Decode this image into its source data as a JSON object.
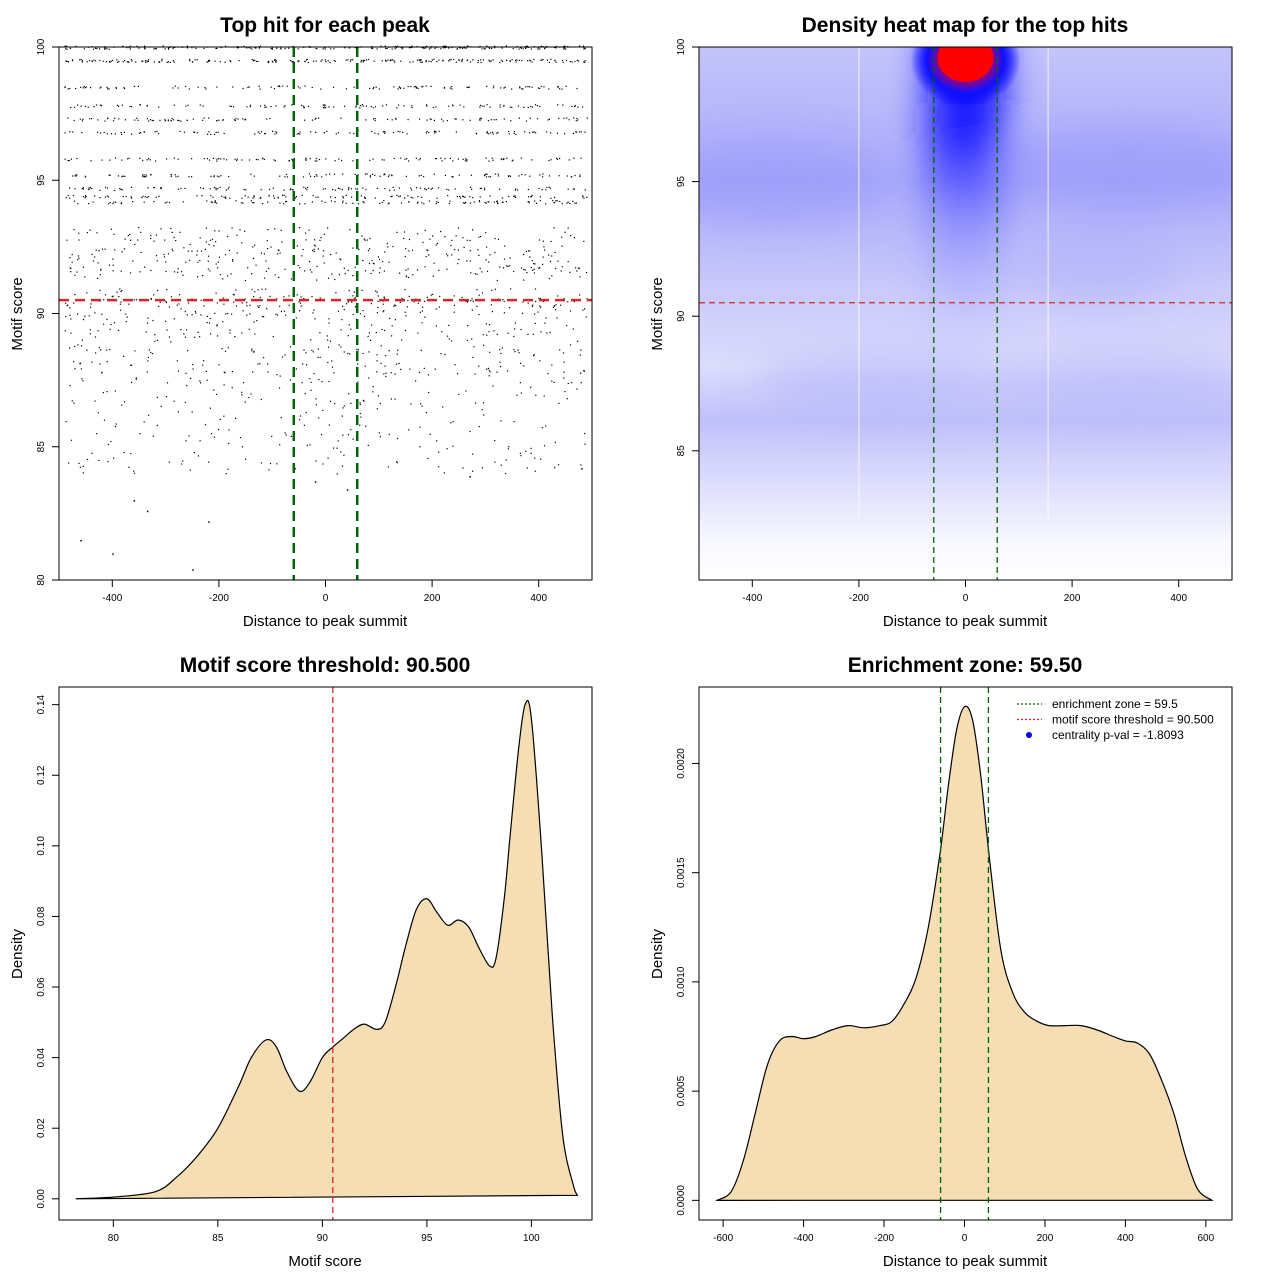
{
  "colors": {
    "threshold_line": "#d62728",
    "zone_line": "#006400",
    "density_fill": "#f5deb3",
    "legend_dot": "#0000ff"
  },
  "chart_data": [
    {
      "type": "scatter",
      "title": "Top hit for each peak",
      "xlabel": "Distance to peak summit",
      "ylabel": "Motif score",
      "xlim": [
        -500,
        500
      ],
      "ylim": [
        80,
        100
      ],
      "xticks": [
        -400,
        -200,
        0,
        200,
        400
      ],
      "yticks": [
        80,
        85,
        90,
        95,
        100
      ],
      "hlines": [
        90.5
      ],
      "vlines": [
        -59.5,
        59.5
      ],
      "score_levels": [
        100,
        99.5,
        98.5,
        97.8,
        97.3,
        96.8,
        95.8,
        95.2,
        94.7,
        94.4,
        94.2,
        93.0,
        92.6,
        92.2,
        91.8,
        91.5,
        90.7,
        90.5,
        90.2,
        89.8,
        89.2,
        88.6,
        88.0,
        87.6,
        87.3,
        86.9,
        86.5,
        86.0,
        85.5,
        85.0,
        84.6,
        84.2
      ],
      "sparse_points": [
        {
          "x": -460,
          "y": 81.5
        },
        {
          "x": -400,
          "y": 81.0
        },
        {
          "x": -360,
          "y": 83.0
        },
        {
          "x": -335,
          "y": 82.6
        },
        {
          "x": -220,
          "y": 82.2
        },
        {
          "x": -250,
          "y": 80.4
        },
        {
          "x": -20,
          "y": 83.7
        },
        {
          "x": 40,
          "y": 83.4
        },
        {
          "x": 270,
          "y": 83.9
        },
        {
          "x": 480,
          "y": 84.2
        }
      ]
    },
    {
      "type": "heatmap",
      "title": "Density heat map for the top hits",
      "xlabel": "Distance to peak summit",
      "ylabel": "Motif score",
      "xlim": [
        -500,
        500
      ],
      "ylim": [
        80.2,
        100
      ],
      "xticks": [
        -400,
        -200,
        0,
        200,
        400
      ],
      "yticks": [
        85,
        90,
        95,
        100
      ],
      "hlines": [
        90.5
      ],
      "vlines": [
        -59.5,
        59.5
      ]
    },
    {
      "type": "area",
      "title": "Motif score threshold: 90.500",
      "xlabel": "Motif score",
      "ylabel": "Density",
      "xlim": [
        77.4,
        102.9
      ],
      "ylim": [
        -0.006,
        0.145
      ],
      "xticks": [
        80,
        85,
        90,
        95,
        100
      ],
      "yticks": [
        0.0,
        0.02,
        0.04,
        0.06,
        0.08,
        0.1,
        0.12,
        0.14
      ],
      "ytick_labels": [
        "0.00",
        "0.02",
        "0.04",
        "0.06",
        "0.08",
        "0.10",
        "0.12",
        "0.14"
      ],
      "vlines": [
        90.5
      ],
      "x": [
        78.2,
        80,
        82,
        83,
        84,
        85,
        86,
        86.6,
        87.3,
        87.8,
        88.3,
        88.9,
        89.4,
        90,
        90.5,
        91,
        91.5,
        92,
        92.6,
        93,
        93.5,
        94,
        94.5,
        95,
        95.5,
        96,
        96.5,
        97,
        97.5,
        98,
        98.3,
        98.7,
        99,
        99.4,
        99.7,
        100,
        100.5,
        101,
        101.5,
        102,
        102.2
      ],
      "y": [
        0.0,
        0.0005,
        0.002,
        0.006,
        0.012,
        0.02,
        0.032,
        0.04,
        0.045,
        0.043,
        0.036,
        0.0305,
        0.033,
        0.04,
        0.043,
        0.0455,
        0.048,
        0.0495,
        0.048,
        0.05,
        0.06,
        0.072,
        0.082,
        0.085,
        0.081,
        0.0775,
        0.079,
        0.077,
        0.071,
        0.066,
        0.068,
        0.085,
        0.104,
        0.128,
        0.14,
        0.136,
        0.098,
        0.052,
        0.018,
        0.004,
        0.001
      ]
    },
    {
      "type": "area",
      "title": "Enrichment zone: 59.50",
      "xlabel": "Distance to peak summit",
      "ylabel": "Density",
      "xlim": [
        -660,
        665
      ],
      "ylim": [
        -9e-05,
        0.00235
      ],
      "xticks": [
        -600,
        -400,
        -200,
        0,
        200,
        400,
        600
      ],
      "yticks": [
        0.0,
        0.0005,
        0.001,
        0.0015,
        0.002
      ],
      "ytick_labels": [
        "0.0000",
        "0.0005",
        "0.0010",
        "0.0015",
        "0.0020"
      ],
      "vlines": [
        -59.5,
        59.5
      ],
      "x": [
        -615,
        -580,
        -550,
        -520,
        -490,
        -460,
        -430,
        -400,
        -370,
        -330,
        -290,
        -250,
        -210,
        -180,
        -150,
        -120,
        -90,
        -60,
        -40,
        -20,
        0,
        20,
        40,
        60,
        90,
        120,
        150,
        180,
        210,
        250,
        290,
        330,
        370,
        400,
        430,
        460,
        490,
        520,
        550,
        580,
        615
      ],
      "y": [
        0.0,
        4e-05,
        0.00018,
        0.0004,
        0.00062,
        0.00073,
        0.00075,
        0.00074,
        0.00075,
        0.00078,
        0.0008,
        0.00079,
        0.0008,
        0.00082,
        0.0009,
        0.00102,
        0.00125,
        0.0016,
        0.0019,
        0.00215,
        0.00226,
        0.0022,
        0.00195,
        0.0016,
        0.00115,
        0.00095,
        0.00086,
        0.00082,
        0.0008,
        0.0008,
        0.0008,
        0.00078,
        0.00075,
        0.00073,
        0.00072,
        0.00067,
        0.00055,
        0.0004,
        0.0002,
        5e-05,
        0.0
      ],
      "legend": [
        {
          "label": "enrichment zone = 59.5",
          "style": "dotted-green"
        },
        {
          "label": "motif score threshold = 90.500",
          "style": "dotted-red"
        },
        {
          "label": "centrality p-val = -1.8093",
          "style": "dot-blue"
        }
      ],
      "legend_position": "top-right"
    }
  ]
}
